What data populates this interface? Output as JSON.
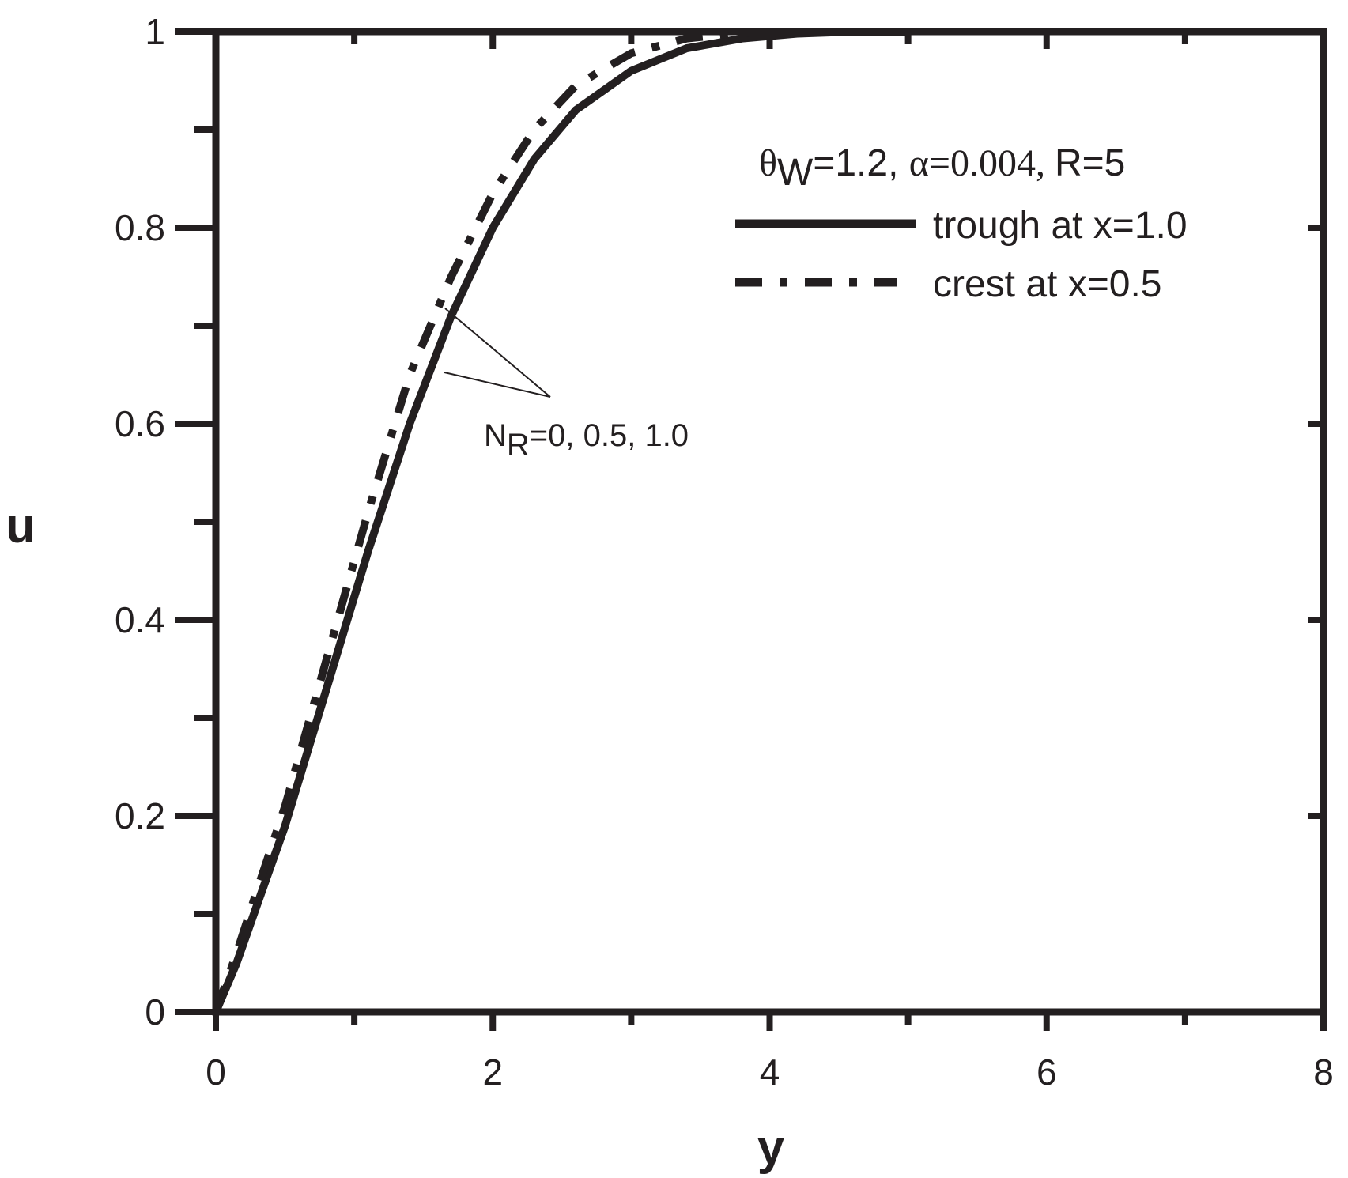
{
  "chart_data": {
    "type": "line",
    "xlabel": "y",
    "ylabel": "u",
    "xlim": [
      0,
      8
    ],
    "ylim": [
      0,
      1
    ],
    "x_ticks": [
      "0",
      "2",
      "4",
      "6",
      "8"
    ],
    "y_ticks": [
      "0",
      "0.2",
      "0.4",
      "0.6",
      "0.8",
      "1"
    ],
    "grid": false,
    "legend_position": "top-right",
    "params": {
      "theta_symbol": "θ",
      "theta_sub": "W",
      "theta_rest": "=1.2, ",
      "alpha_part": "α=0.004, ",
      "r_part": "R=5"
    },
    "annotation": {
      "n_main": "N",
      "n_sub": "R",
      "n_rest": "=0, 0.5, 1.0"
    },
    "series": [
      {
        "name": "trough at x=1.0",
        "style": "solid",
        "x": [
          0,
          0.15,
          0.3,
          0.5,
          0.8,
          1.1,
          1.4,
          1.7,
          2.0,
          2.3,
          2.6,
          3.0,
          3.4,
          3.8,
          4.2,
          4.6,
          5.0
        ],
        "y": [
          0,
          0.05,
          0.11,
          0.19,
          0.33,
          0.47,
          0.6,
          0.71,
          0.8,
          0.87,
          0.92,
          0.96,
          0.983,
          0.993,
          0.998,
          1.0,
          1.0
        ]
      },
      {
        "name": "crest at x=0.5",
        "style": "dashdot",
        "x": [
          0,
          0.15,
          0.3,
          0.5,
          0.8,
          1.1,
          1.4,
          1.7,
          2.0,
          2.3,
          2.6,
          3.0,
          3.4,
          3.8,
          4.2
        ],
        "y": [
          0,
          0.06,
          0.125,
          0.21,
          0.36,
          0.51,
          0.65,
          0.75,
          0.835,
          0.9,
          0.945,
          0.978,
          0.993,
          0.999,
          1.0
        ]
      }
    ],
    "colors": {
      "ink": "#231f20",
      "background": "#ffffff"
    }
  }
}
